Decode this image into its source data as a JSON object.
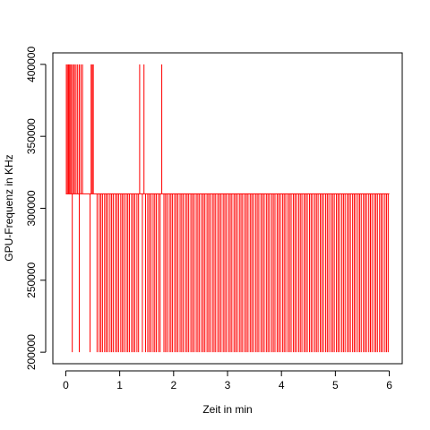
{
  "chart_data": {
    "type": "line",
    "style": "step",
    "title": "",
    "xlabel": "Zeit in min",
    "ylabel": "GPU-Frequenz in KHz",
    "xlim": [
      -0.24,
      6.24
    ],
    "ylim": [
      192000,
      408000
    ],
    "x_ticks": [
      0,
      1,
      2,
      3,
      4,
      5,
      6
    ],
    "x_tick_labels": [
      "0",
      "1",
      "2",
      "3",
      "4",
      "5",
      "6"
    ],
    "y_ticks": [
      200000,
      250000,
      300000,
      350000,
      400000
    ],
    "y_tick_labels": [
      "200000",
      "250000",
      "300000",
      "350000",
      "400000"
    ],
    "grid": false,
    "legend": "none",
    "series": [
      {
        "color": "#ff0000",
        "levels": [
          200000,
          310000,
          400000
        ],
        "spikes_to_400000_at_min": [
          0.01,
          0.03,
          0.05,
          0.07,
          0.09,
          0.11,
          0.14,
          0.16,
          0.19,
          0.22,
          0.25,
          0.28,
          0.31,
          0.47,
          0.49,
          0.51,
          1.37,
          1.45,
          1.78
        ],
        "dips_to_200000_at_min": [
          0.12,
          0.25,
          0.45,
          0.58,
          0.62,
          0.65,
          0.68,
          0.72,
          0.75,
          0.78,
          0.82,
          0.85,
          0.88,
          0.92,
          0.95,
          0.98,
          1.02,
          1.05,
          1.08,
          1.12,
          1.15,
          1.18,
          1.22,
          1.25,
          1.28,
          1.32,
          1.35,
          1.42,
          1.48,
          1.52,
          1.55,
          1.58,
          1.62,
          1.65,
          1.68,
          1.72,
          1.75,
          1.82,
          1.85,
          1.88,
          1.92,
          1.95,
          1.98,
          2.02,
          2.05,
          2.08,
          2.12,
          2.15,
          2.18,
          2.22,
          2.25,
          2.28,
          2.32,
          2.35,
          2.38,
          2.42,
          2.45,
          2.48,
          2.52,
          2.55,
          2.58,
          2.62,
          2.65,
          2.68,
          2.72,
          2.75,
          2.78,
          2.82,
          2.85,
          2.88,
          2.92,
          2.95,
          2.98,
          3.02,
          3.05,
          3.08,
          3.12,
          3.15,
          3.18,
          3.22,
          3.25,
          3.28,
          3.32,
          3.35,
          3.38,
          3.42,
          3.45,
          3.48,
          3.52,
          3.55,
          3.58,
          3.62,
          3.65,
          3.68,
          3.72,
          3.75,
          3.78,
          3.82,
          3.85,
          3.88,
          3.92,
          3.95,
          3.98,
          4.02,
          4.05,
          4.08,
          4.12,
          4.15,
          4.18,
          4.22,
          4.25,
          4.28,
          4.32,
          4.35,
          4.38,
          4.42,
          4.45,
          4.48,
          4.52,
          4.55,
          4.58,
          4.62,
          4.65,
          4.68,
          4.72,
          4.75,
          4.78,
          4.82,
          4.85,
          4.88,
          4.92,
          4.95,
          4.98,
          5.02,
          5.05,
          5.08,
          5.12,
          5.15,
          5.18,
          5.22,
          5.25,
          5.28,
          5.32,
          5.35,
          5.38,
          5.42,
          5.45,
          5.48,
          5.52,
          5.55,
          5.58,
          5.62,
          5.65,
          5.68,
          5.72,
          5.75,
          5.78,
          5.82,
          5.85,
          5.88,
          5.92,
          5.95,
          5.98
        ]
      }
    ]
  }
}
